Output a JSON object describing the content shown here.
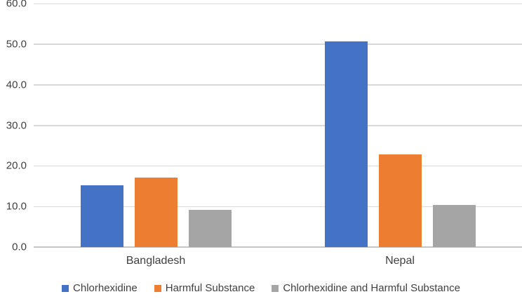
{
  "chart_data": {
    "type": "bar",
    "categories": [
      "Bangladesh",
      "Nepal"
    ],
    "series": [
      {
        "name": "Chlorhexidine",
        "color": "#4472C4",
        "values": [
          15.2,
          50.7
        ]
      },
      {
        "name": "Harmful Substance",
        "color": "#ED7D31",
        "values": [
          17.1,
          22.8
        ]
      },
      {
        "name": "Chlorhexidine and Harmful Substance",
        "color": "#A5A5A5",
        "values": [
          9.2,
          10.4
        ]
      }
    ],
    "title": "",
    "xlabel": "",
    "ylabel": "",
    "ylim": [
      0,
      60
    ],
    "yticks": [
      0,
      10,
      20,
      30,
      40,
      50,
      60
    ],
    "ytick_labels": [
      "0.0",
      "10.0",
      "20.0",
      "30.0",
      "40.0",
      "50.0",
      "60.0"
    ],
    "grid": true,
    "legend_position": "bottom"
  },
  "style_colors": {
    "gridline": "#D9D9D9",
    "baseline": "#C6C6C6",
    "axis_text": "#404040"
  }
}
